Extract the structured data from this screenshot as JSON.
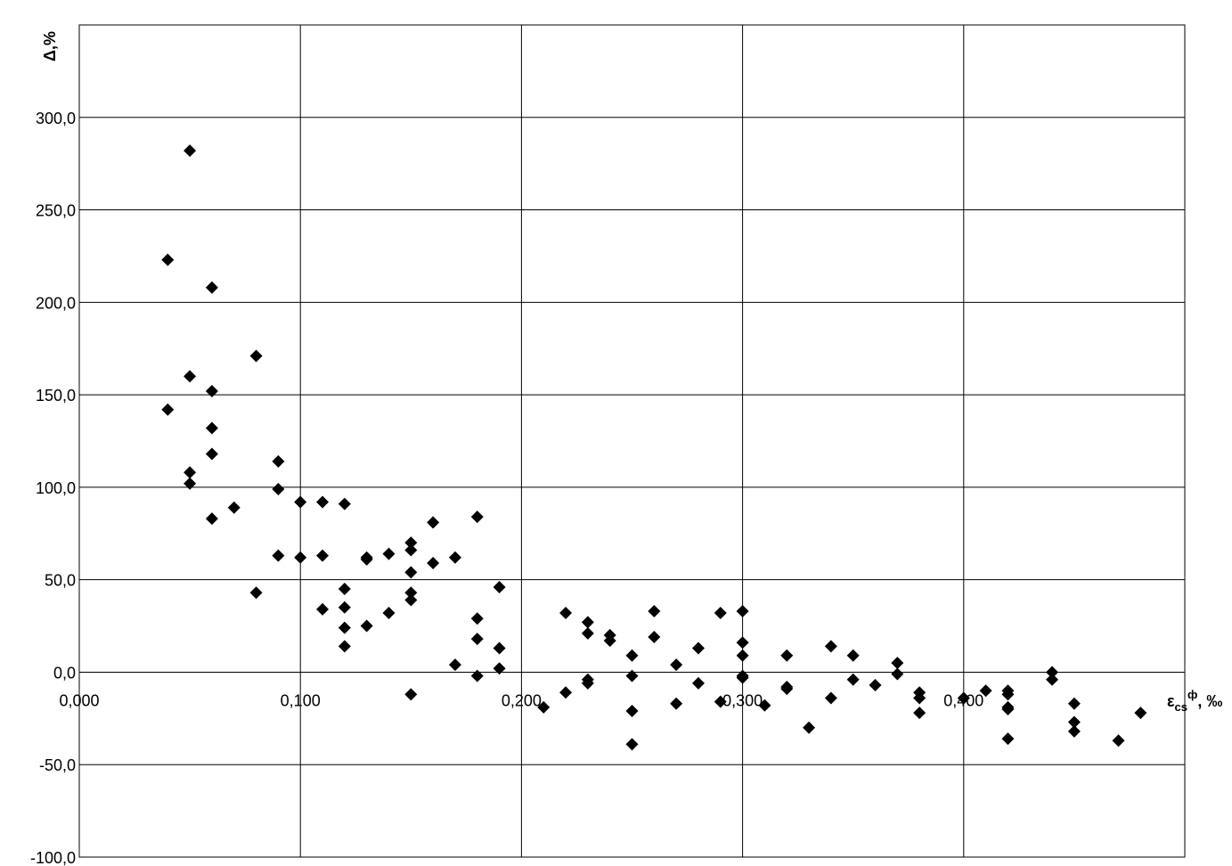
{
  "chart_data": {
    "type": "scatter",
    "title": "",
    "ylabel": "Δ,%",
    "xlabel": {
      "main": "ε",
      "subscript": "cs",
      "superscript": "ф",
      "suffix": ", ‰"
    },
    "xlim": [
      0,
      0.5
    ],
    "ylim": [
      -100,
      350
    ],
    "x_ticks": [
      0,
      0.1,
      0.2,
      0.3,
      0.4
    ],
    "x_tick_labels": [
      "0,000",
      "0,100",
      "0,200",
      "0,300",
      "0,400"
    ],
    "y_ticks": [
      -100,
      -50,
      0,
      50,
      100,
      150,
      200,
      250,
      300
    ],
    "y_tick_labels": [
      "-100,0",
      "-50,0",
      "0,0",
      "50,0",
      "100,0",
      "150,0",
      "200,0",
      "250,0",
      "300,0"
    ],
    "grid": true,
    "legend": "none",
    "marker": "diamond",
    "marker_color": "#000000",
    "points": [
      [
        0.04,
        223
      ],
      [
        0.04,
        142
      ],
      [
        0.05,
        282
      ],
      [
        0.05,
        160
      ],
      [
        0.05,
        108
      ],
      [
        0.05,
        102
      ],
      [
        0.06,
        208
      ],
      [
        0.06,
        152
      ],
      [
        0.06,
        132
      ],
      [
        0.06,
        118
      ],
      [
        0.06,
        83
      ],
      [
        0.07,
        89
      ],
      [
        0.08,
        171
      ],
      [
        0.08,
        43
      ],
      [
        0.09,
        114
      ],
      [
        0.09,
        99
      ],
      [
        0.09,
        63
      ],
      [
        0.1,
        92
      ],
      [
        0.1,
        62
      ],
      [
        0.11,
        92
      ],
      [
        0.11,
        63
      ],
      [
        0.11,
        34
      ],
      [
        0.12,
        91
      ],
      [
        0.12,
        45
      ],
      [
        0.12,
        35
      ],
      [
        0.12,
        24
      ],
      [
        0.12,
        14
      ],
      [
        0.13,
        62
      ],
      [
        0.13,
        61
      ],
      [
        0.13,
        25
      ],
      [
        0.14,
        64
      ],
      [
        0.14,
        32
      ],
      [
        0.15,
        70
      ],
      [
        0.15,
        66
      ],
      [
        0.15,
        54
      ],
      [
        0.15,
        43
      ],
      [
        0.15,
        39
      ],
      [
        0.15,
        -12
      ],
      [
        0.16,
        81
      ],
      [
        0.16,
        59
      ],
      [
        0.17,
        62
      ],
      [
        0.17,
        4
      ],
      [
        0.18,
        84
      ],
      [
        0.18,
        29
      ],
      [
        0.18,
        18
      ],
      [
        0.18,
        -2
      ],
      [
        0.19,
        46
      ],
      [
        0.19,
        13
      ],
      [
        0.19,
        2
      ],
      [
        0.21,
        -19
      ],
      [
        0.22,
        32
      ],
      [
        0.22,
        -11
      ],
      [
        0.23,
        27
      ],
      [
        0.23,
        21
      ],
      [
        0.23,
        -4
      ],
      [
        0.23,
        -6
      ],
      [
        0.24,
        20
      ],
      [
        0.24,
        17
      ],
      [
        0.25,
        9
      ],
      [
        0.25,
        -2
      ],
      [
        0.25,
        -21
      ],
      [
        0.25,
        -39
      ],
      [
        0.26,
        33
      ],
      [
        0.26,
        19
      ],
      [
        0.27,
        4
      ],
      [
        0.27,
        -17
      ],
      [
        0.28,
        13
      ],
      [
        0.28,
        -6
      ],
      [
        0.29,
        32
      ],
      [
        0.29,
        -16
      ],
      [
        0.3,
        33
      ],
      [
        0.3,
        16
      ],
      [
        0.3,
        9
      ],
      [
        0.3,
        -2
      ],
      [
        0.3,
        -3
      ],
      [
        0.31,
        -18
      ],
      [
        0.32,
        9
      ],
      [
        0.32,
        -8
      ],
      [
        0.32,
        -9
      ],
      [
        0.33,
        -30
      ],
      [
        0.34,
        14
      ],
      [
        0.34,
        -14
      ],
      [
        0.35,
        9
      ],
      [
        0.35,
        -4
      ],
      [
        0.36,
        -7
      ],
      [
        0.37,
        5
      ],
      [
        0.37,
        -1
      ],
      [
        0.38,
        -11
      ],
      [
        0.38,
        -14
      ],
      [
        0.38,
        -22
      ],
      [
        0.4,
        -14
      ],
      [
        0.41,
        -10
      ],
      [
        0.42,
        -10
      ],
      [
        0.42,
        -12
      ],
      [
        0.42,
        -19
      ],
      [
        0.42,
        -20
      ],
      [
        0.42,
        -36
      ],
      [
        0.44,
        0
      ],
      [
        0.44,
        -4
      ],
      [
        0.45,
        -17
      ],
      [
        0.45,
        -27
      ],
      [
        0.45,
        -32
      ],
      [
        0.47,
        -37
      ],
      [
        0.48,
        -22
      ]
    ]
  }
}
